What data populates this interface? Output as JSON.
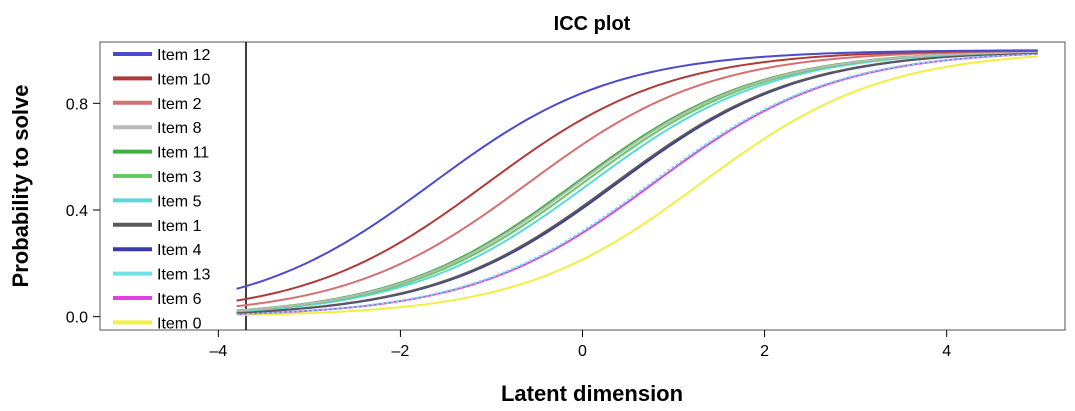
{
  "chart_data": {
    "type": "line",
    "title": "ICC plot",
    "xlabel": "Latent dimension",
    "ylabel": "Probability to solve",
    "xlim": [
      -5.3,
      5.3
    ],
    "ylim": [
      -0.05,
      1.03
    ],
    "x_range_plotted": [
      -3.8,
      5
    ],
    "x_ticks": [
      -4,
      -2,
      0,
      2,
      4
    ],
    "x_tick_labels": [
      "–4",
      "–2",
      "0",
      "2",
      "4"
    ],
    "y_ticks": [
      0.0,
      0.4,
      0.8
    ],
    "y_tick_labels": [
      "0.0",
      "0.4",
      "0.8"
    ],
    "grid": false,
    "legend_position": "left",
    "series": [
      {
        "name": "Item 12",
        "color": "#4a4ad0",
        "difficulty": -1.65
      },
      {
        "name": "Item 10",
        "color": "#b03a3a",
        "difficulty": -1.05
      },
      {
        "name": "Item 2",
        "color": "#d47070",
        "difficulty": -0.6
      },
      {
        "name": "Item 8",
        "color": "#b8b8b8",
        "difficulty": -0.05
      },
      {
        "name": "Item 11",
        "color": "#40b040",
        "difficulty": -0.08
      },
      {
        "name": "Item 3",
        "color": "#60cc60",
        "difficulty": 0.0
      },
      {
        "name": "Item 5",
        "color": "#5ad8d8",
        "difficulty": 0.08
      },
      {
        "name": "Item 1",
        "color": "#5a5a5a",
        "difficulty": 0.35
      },
      {
        "name": "Item 4",
        "color": "#3a3aa8",
        "difficulty": 0.38
      },
      {
        "name": "Item 13",
        "color": "#70e0e8",
        "difficulty": 0.75,
        "dashed": true
      },
      {
        "name": "Item 6",
        "color": "#e040e0",
        "difficulty": 0.78
      },
      {
        "name": "Item 0",
        "color": "#f0f040",
        "difficulty": 1.3
      }
    ]
  }
}
